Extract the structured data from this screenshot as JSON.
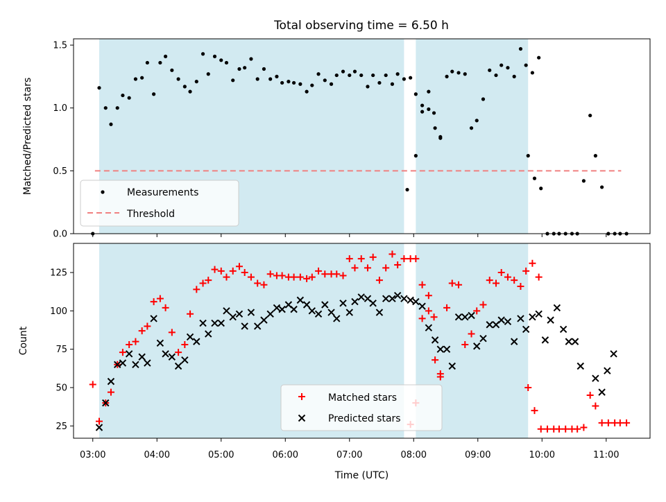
{
  "title": "Total observing time = 6.50 h",
  "colors": {
    "band": "#add8e6",
    "measure": "#000000",
    "threshold": "#f08080",
    "matched": "#ff0000",
    "predicted": "#000000"
  },
  "chart_data": [
    {
      "type": "scatter",
      "ylabel": "Matched/Predicted stars",
      "ylim": [
        0,
        1.55
      ],
      "yticks": [
        "0.0",
        "0.5",
        "1.0",
        "1.5"
      ],
      "xlim": [
        "02:42",
        "11:41"
      ],
      "shaded_intervals": [
        [
          "03:06",
          "07:51"
        ],
        [
          "08:02",
          "09:47"
        ]
      ],
      "threshold": {
        "value": 0.5,
        "x_start": "03:02",
        "x_end": "11:14"
      },
      "legend": {
        "position": "lower-left",
        "entries": [
          "Measurements",
          "Threshold"
        ]
      },
      "measurements": [
        [
          "03:00",
          0.0
        ],
        [
          "03:06",
          1.16
        ],
        [
          "03:12",
          1.0
        ],
        [
          "03:17",
          0.87
        ],
        [
          "03:23",
          1.0
        ],
        [
          "03:28",
          1.1
        ],
        [
          "03:34",
          1.08
        ],
        [
          "03:40",
          1.23
        ],
        [
          "03:46",
          1.24
        ],
        [
          "03:51",
          1.36
        ],
        [
          "03:57",
          1.11
        ],
        [
          "04:03",
          1.36
        ],
        [
          "04:08",
          1.41
        ],
        [
          "04:14",
          1.3
        ],
        [
          "04:20",
          1.23
        ],
        [
          "04:26",
          1.17
        ],
        [
          "04:31",
          1.13
        ],
        [
          "04:37",
          1.21
        ],
        [
          "04:43",
          1.43
        ],
        [
          "04:48",
          1.27
        ],
        [
          "04:54",
          1.41
        ],
        [
          "05:00",
          1.38
        ],
        [
          "05:05",
          1.36
        ],
        [
          "05:11",
          1.22
        ],
        [
          "05:17",
          1.31
        ],
        [
          "05:22",
          1.32
        ],
        [
          "05:28",
          1.39
        ],
        [
          "05:34",
          1.23
        ],
        [
          "05:40",
          1.31
        ],
        [
          "05:46",
          1.23
        ],
        [
          "05:52",
          1.25
        ],
        [
          "05:57",
          1.2
        ],
        [
          "06:03",
          1.21
        ],
        [
          "06:08",
          1.2
        ],
        [
          "06:14",
          1.19
        ],
        [
          "06:20",
          1.13
        ],
        [
          "06:25",
          1.18
        ],
        [
          "06:31",
          1.27
        ],
        [
          "06:37",
          1.22
        ],
        [
          "06:43",
          1.19
        ],
        [
          "06:48",
          1.26
        ],
        [
          "06:54",
          1.29
        ],
        [
          "07:00",
          1.26
        ],
        [
          "07:05",
          1.29
        ],
        [
          "07:11",
          1.26
        ],
        [
          "07:17",
          1.17
        ],
        [
          "07:22",
          1.26
        ],
        [
          "07:28",
          1.2
        ],
        [
          "07:34",
          1.26
        ],
        [
          "07:40",
          1.19
        ],
        [
          "07:45",
          1.27
        ],
        [
          "07:51",
          1.23
        ],
        [
          "07:57",
          1.24
        ],
        [
          "08:02",
          1.11
        ],
        [
          "08:08",
          0.97
        ],
        [
          "08:14",
          0.99
        ],
        [
          "08:20",
          0.84
        ],
        [
          "08:25",
          0.77
        ],
        [
          "07:54",
          0.35
        ],
        [
          "08:02",
          0.62
        ],
        [
          "08:08",
          1.02
        ],
        [
          "08:14",
          1.13
        ],
        [
          "08:19",
          0.96
        ],
        [
          "08:25",
          0.76
        ],
        [
          "08:31",
          1.25
        ],
        [
          "08:36",
          1.29
        ],
        [
          "08:42",
          1.28
        ],
        [
          "08:48",
          1.27
        ],
        [
          "08:54",
          0.84
        ],
        [
          "08:59",
          0.9
        ],
        [
          "09:05",
          1.07
        ],
        [
          "09:11",
          1.3
        ],
        [
          "09:17",
          1.26
        ],
        [
          "09:22",
          1.34
        ],
        [
          "09:28",
          1.32
        ],
        [
          "09:34",
          1.25
        ],
        [
          "09:40",
          1.47
        ],
        [
          "09:45",
          1.34
        ],
        [
          "09:51",
          1.28
        ],
        [
          "09:57",
          1.4
        ],
        [
          "09:47",
          0.62
        ],
        [
          "09:53",
          0.44
        ],
        [
          "09:59",
          0.36
        ],
        [
          "10:05",
          0.0
        ],
        [
          "10:11",
          0.0
        ],
        [
          "10:16",
          0.0
        ],
        [
          "10:22",
          0.0
        ],
        [
          "10:28",
          0.0
        ],
        [
          "10:33",
          0.0
        ],
        [
          "10:39",
          0.42
        ],
        [
          "10:45",
          0.94
        ],
        [
          "10:50",
          0.62
        ],
        [
          "10:56",
          0.37
        ],
        [
          "11:02",
          0.0
        ],
        [
          "11:08",
          0.0
        ],
        [
          "11:13",
          0.0
        ],
        [
          "11:19",
          0.0
        ]
      ]
    },
    {
      "type": "scatter",
      "ylabel": "Count",
      "xlabel": "Time (UTC)",
      "ylim": [
        17,
        144
      ],
      "yticks": [
        "25",
        "50",
        "75",
        "100",
        "125"
      ],
      "xticks": [
        "03:00",
        "04:00",
        "05:00",
        "06:00",
        "07:00",
        "08:00",
        "09:00",
        "10:00",
        "11:00"
      ],
      "xlim": [
        "02:42",
        "11:41"
      ],
      "shaded_intervals": [
        [
          "03:06",
          "07:51"
        ],
        [
          "08:02",
          "09:47"
        ]
      ],
      "legend": {
        "position": "lower-center",
        "entries": [
          "Matched stars",
          "Predicted stars"
        ]
      },
      "series": [
        {
          "name": "Matched stars",
          "marker": "plus",
          "color": "#ff0000",
          "points": [
            [
              "03:00",
              52
            ],
            [
              "03:06",
              28
            ],
            [
              "03:12",
              40
            ],
            [
              "03:17",
              47
            ],
            [
              "03:23",
              65
            ],
            [
              "03:28",
              73
            ],
            [
              "03:34",
              78
            ],
            [
              "03:40",
              80
            ],
            [
              "03:46",
              87
            ],
            [
              "03:51",
              90
            ],
            [
              "03:57",
              106
            ],
            [
              "04:03",
              108
            ],
            [
              "04:08",
              102
            ],
            [
              "04:14",
              86
            ],
            [
              "04:20",
              73
            ],
            [
              "04:26",
              78
            ],
            [
              "04:31",
              98
            ],
            [
              "04:37",
              114
            ],
            [
              "04:43",
              118
            ],
            [
              "04:48",
              120
            ],
            [
              "04:54",
              127
            ],
            [
              "05:00",
              126
            ],
            [
              "05:05",
              122
            ],
            [
              "05:11",
              126
            ],
            [
              "05:17",
              129
            ],
            [
              "05:22",
              125
            ],
            [
              "05:28",
              122
            ],
            [
              "05:34",
              118
            ],
            [
              "05:40",
              117
            ],
            [
              "05:46",
              124
            ],
            [
              "05:52",
              123
            ],
            [
              "05:57",
              123
            ],
            [
              "06:03",
              122
            ],
            [
              "06:08",
              122
            ],
            [
              "06:14",
              122
            ],
            [
              "06:20",
              121
            ],
            [
              "06:25",
              122
            ],
            [
              "06:31",
              126
            ],
            [
              "06:37",
              124
            ],
            [
              "06:43",
              124
            ],
            [
              "06:48",
              124
            ],
            [
              "06:54",
              123
            ],
            [
              "07:00",
              134
            ],
            [
              "07:05",
              128
            ],
            [
              "07:11",
              134
            ],
            [
              "07:17",
              128
            ],
            [
              "07:22",
              135
            ],
            [
              "07:28",
              120
            ],
            [
              "07:34",
              128
            ],
            [
              "07:40",
              137
            ],
            [
              "07:45",
              130
            ],
            [
              "07:51",
              134
            ],
            [
              "07:57",
              134
            ],
            [
              "08:02",
              134
            ],
            [
              "08:08",
              117
            ],
            [
              "08:14",
              100
            ],
            [
              "08:20",
              68
            ],
            [
              "08:25",
              57
            ],
            [
              "07:57",
              26
            ],
            [
              "08:02",
              40
            ],
            [
              "08:08",
              95
            ],
            [
              "08:14",
              110
            ],
            [
              "08:19",
              96
            ],
            [
              "08:25",
              59
            ],
            [
              "08:31",
              102
            ],
            [
              "08:36",
              118
            ],
            [
              "08:42",
              117
            ],
            [
              "08:48",
              78
            ],
            [
              "08:54",
              85
            ],
            [
              "08:59",
              100
            ],
            [
              "09:05",
              104
            ],
            [
              "09:11",
              120
            ],
            [
              "09:17",
              118
            ],
            [
              "09:22",
              125
            ],
            [
              "09:28",
              122
            ],
            [
              "09:34",
              120
            ],
            [
              "09:40",
              116
            ],
            [
              "09:45",
              126
            ],
            [
              "09:51",
              131
            ],
            [
              "09:57",
              122
            ],
            [
              "09:47",
              50
            ],
            [
              "09:53",
              35
            ],
            [
              "09:59",
              23
            ],
            [
              "10:05",
              23
            ],
            [
              "10:11",
              23
            ],
            [
              "10:16",
              23
            ],
            [
              "10:22",
              23
            ],
            [
              "10:28",
              23
            ],
            [
              "10:33",
              23
            ],
            [
              "10:39",
              24
            ],
            [
              "10:45",
              45
            ],
            [
              "10:50",
              38
            ],
            [
              "10:56",
              27
            ],
            [
              "11:02",
              27
            ],
            [
              "11:08",
              27
            ],
            [
              "11:13",
              27
            ],
            [
              "11:19",
              27
            ]
          ]
        },
        {
          "name": "Predicted stars",
          "marker": "x",
          "color": "#000000",
          "points": [
            [
              "03:06",
              24
            ],
            [
              "03:12",
              40
            ],
            [
              "03:17",
              54
            ],
            [
              "03:23",
              65
            ],
            [
              "03:28",
              66
            ],
            [
              "03:34",
              72
            ],
            [
              "03:40",
              65
            ],
            [
              "03:46",
              70
            ],
            [
              "03:51",
              66
            ],
            [
              "03:57",
              95
            ],
            [
              "04:03",
              79
            ],
            [
              "04:08",
              72
            ],
            [
              "04:14",
              70
            ],
            [
              "04:20",
              64
            ],
            [
              "04:26",
              68
            ],
            [
              "04:31",
              83
            ],
            [
              "04:37",
              80
            ],
            [
              "04:43",
              92
            ],
            [
              "04:48",
              85
            ],
            [
              "04:54",
              92
            ],
            [
              "05:00",
              92
            ],
            [
              "05:05",
              100
            ],
            [
              "05:11",
              96
            ],
            [
              "05:17",
              98
            ],
            [
              "05:22",
              90
            ],
            [
              "05:28",
              99
            ],
            [
              "05:34",
              90
            ],
            [
              "05:40",
              94
            ],
            [
              "05:46",
              98
            ],
            [
              "05:52",
              102
            ],
            [
              "05:57",
              101
            ],
            [
              "06:03",
              104
            ],
            [
              "06:08",
              101
            ],
            [
              "06:14",
              107
            ],
            [
              "06:20",
              104
            ],
            [
              "06:25",
              100
            ],
            [
              "06:31",
              98
            ],
            [
              "06:37",
              104
            ],
            [
              "06:43",
              99
            ],
            [
              "06:48",
              95
            ],
            [
              "06:54",
              105
            ],
            [
              "07:00",
              99
            ],
            [
              "07:05",
              106
            ],
            [
              "07:11",
              109
            ],
            [
              "07:17",
              108
            ],
            [
              "07:22",
              105
            ],
            [
              "07:28",
              99
            ],
            [
              "07:34",
              108
            ],
            [
              "07:40",
              108
            ],
            [
              "07:45",
              110
            ],
            [
              "07:51",
              108
            ],
            [
              "07:57",
              107
            ],
            [
              "08:02",
              106
            ],
            [
              "08:08",
              103
            ],
            [
              "08:14",
              89
            ],
            [
              "08:20",
              81
            ],
            [
              "08:25",
              75
            ],
            [
              "08:31",
              75
            ],
            [
              "08:36",
              64
            ],
            [
              "08:42",
              96
            ],
            [
              "08:48",
              96
            ],
            [
              "08:54",
              97
            ],
            [
              "08:59",
              77
            ],
            [
              "09:05",
              82
            ],
            [
              "09:11",
              91
            ],
            [
              "09:17",
              91
            ],
            [
              "09:22",
              94
            ],
            [
              "09:28",
              93
            ],
            [
              "09:34",
              80
            ],
            [
              "09:40",
              95
            ],
            [
              "09:45",
              88
            ],
            [
              "09:51",
              96
            ],
            [
              "09:57",
              98
            ],
            [
              "10:03",
              81
            ],
            [
              "10:08",
              94
            ],
            [
              "10:14",
              102
            ],
            [
              "10:20",
              88
            ],
            [
              "10:25",
              80
            ],
            [
              "10:31",
              80
            ],
            [
              "10:36",
              64
            ],
            [
              "10:50",
              56
            ],
            [
              "10:56",
              47
            ],
            [
              "11:01",
              61
            ],
            [
              "11:07",
              72
            ]
          ]
        }
      ]
    }
  ]
}
